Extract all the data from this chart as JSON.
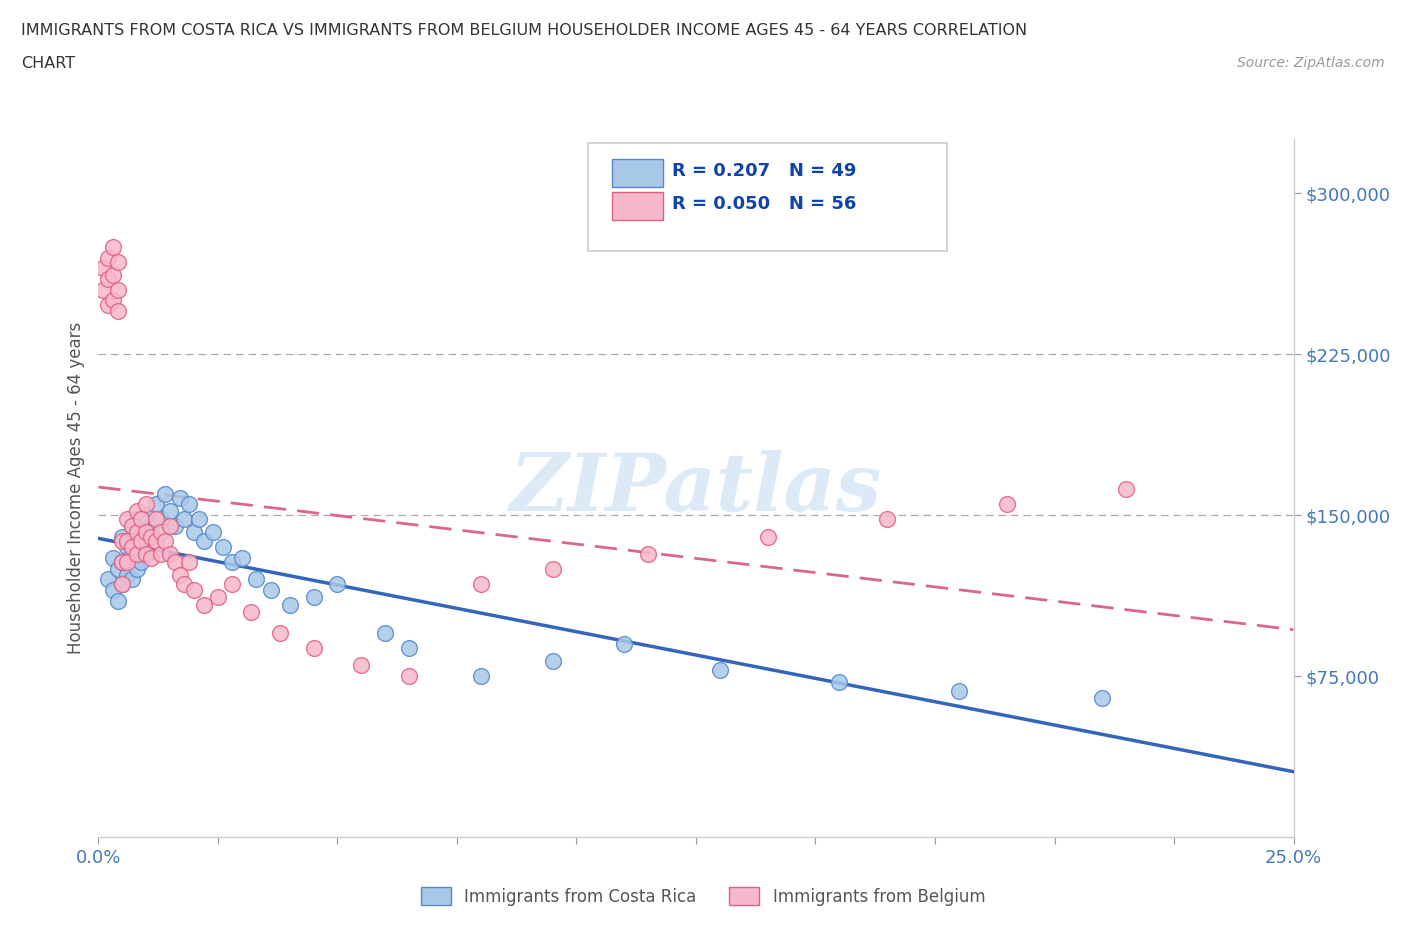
{
  "title_line1": "IMMIGRANTS FROM COSTA RICA VS IMMIGRANTS FROM BELGIUM HOUSEHOLDER INCOME AGES 45 - 64 YEARS CORRELATION",
  "title_line2": "CHART",
  "source_text": "Source: ZipAtlas.com",
  "ylabel": "Householder Income Ages 45 - 64 years",
  "xlim": [
    0.0,
    0.25
  ],
  "ylim": [
    0,
    325000
  ],
  "yticks": [
    75000,
    150000,
    225000,
    300000
  ],
  "yticklabels": [
    "$75,000",
    "$150,000",
    "$225,000",
    "$300,000"
  ],
  "costa_rica_color": "#a8c8e8",
  "costa_rica_edge": "#5588cc",
  "belgium_color": "#f8b8cc",
  "belgium_edge": "#e06080",
  "r_costa_rica": 0.207,
  "n_costa_rica": 49,
  "r_belgium": 0.05,
  "n_belgium": 56,
  "line_color_cr": "#3366bb",
  "line_color_be": "#dd6688",
  "watermark": "ZIPatlas",
  "legend_label_cr": "Immigrants from Costa Rica",
  "legend_label_be": "Immigrants from Belgium",
  "costa_rica_x": [
    0.002,
    0.003,
    0.003,
    0.004,
    0.004,
    0.005,
    0.005,
    0.005,
    0.006,
    0.006,
    0.007,
    0.007,
    0.007,
    0.008,
    0.008,
    0.009,
    0.009,
    0.01,
    0.01,
    0.011,
    0.012,
    0.013,
    0.014,
    0.015,
    0.016,
    0.017,
    0.018,
    0.019,
    0.02,
    0.021,
    0.022,
    0.024,
    0.026,
    0.028,
    0.03,
    0.033,
    0.036,
    0.04,
    0.045,
    0.05,
    0.06,
    0.065,
    0.08,
    0.095,
    0.11,
    0.13,
    0.155,
    0.18,
    0.21
  ],
  "costa_rica_y": [
    120000,
    130000,
    115000,
    125000,
    110000,
    140000,
    128000,
    118000,
    135000,
    122000,
    145000,
    132000,
    120000,
    148000,
    125000,
    138000,
    128000,
    150000,
    132000,
    142000,
    155000,
    148000,
    160000,
    152000,
    145000,
    158000,
    148000,
    155000,
    142000,
    148000,
    138000,
    142000,
    135000,
    128000,
    130000,
    120000,
    115000,
    108000,
    112000,
    118000,
    95000,
    88000,
    75000,
    82000,
    90000,
    78000,
    72000,
    68000,
    65000
  ],
  "belgium_x": [
    0.001,
    0.001,
    0.002,
    0.002,
    0.002,
    0.003,
    0.003,
    0.003,
    0.004,
    0.004,
    0.004,
    0.005,
    0.005,
    0.005,
    0.006,
    0.006,
    0.006,
    0.007,
    0.007,
    0.008,
    0.008,
    0.008,
    0.009,
    0.009,
    0.01,
    0.01,
    0.01,
    0.011,
    0.011,
    0.012,
    0.012,
    0.013,
    0.013,
    0.014,
    0.015,
    0.015,
    0.016,
    0.017,
    0.018,
    0.019,
    0.02,
    0.022,
    0.025,
    0.028,
    0.032,
    0.038,
    0.045,
    0.055,
    0.065,
    0.08,
    0.095,
    0.115,
    0.14,
    0.165,
    0.19,
    0.215
  ],
  "belgium_y": [
    265000,
    255000,
    270000,
    260000,
    248000,
    275000,
    262000,
    250000,
    268000,
    255000,
    245000,
    138000,
    128000,
    118000,
    148000,
    138000,
    128000,
    145000,
    135000,
    152000,
    142000,
    132000,
    148000,
    138000,
    155000,
    142000,
    132000,
    140000,
    130000,
    148000,
    138000,
    142000,
    132000,
    138000,
    145000,
    132000,
    128000,
    122000,
    118000,
    128000,
    115000,
    108000,
    112000,
    118000,
    105000,
    95000,
    88000,
    80000,
    75000,
    118000,
    125000,
    132000,
    140000,
    148000,
    155000,
    162000
  ]
}
